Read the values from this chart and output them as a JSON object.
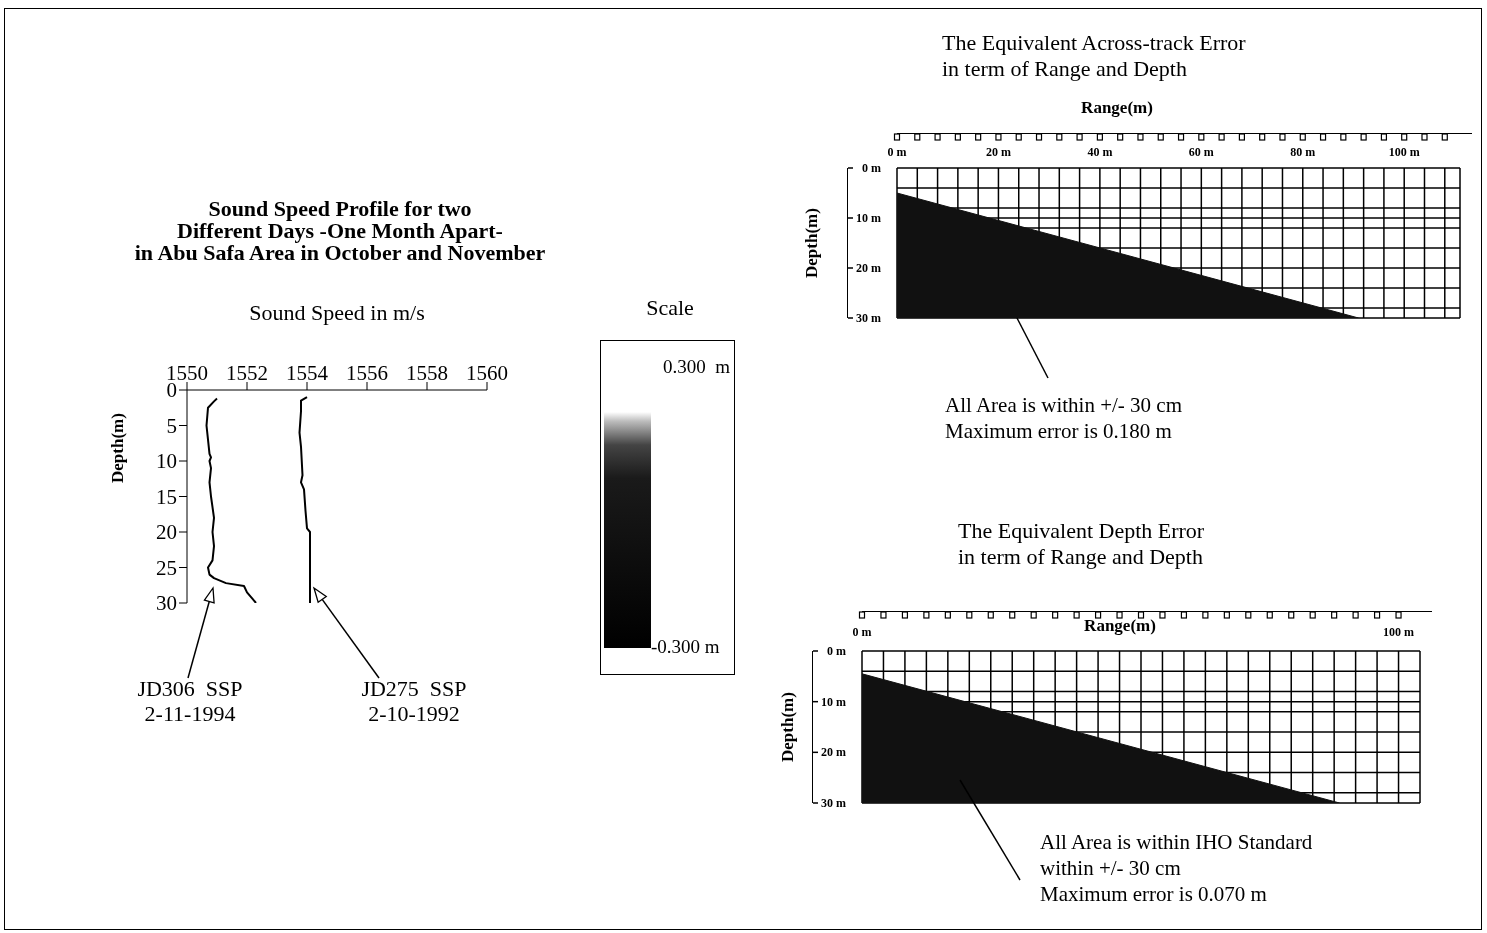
{
  "chart_data": [
    {
      "type": "line",
      "title": "Sound Speed Profile for two\nDifferent Days -One Month Apart-\nin Abu Safa Area in October and November",
      "xlabel": "Sound Speed in m/s",
      "ylabel": "Depth(m)",
      "xlim": [
        1550,
        1560
      ],
      "xticks": [
        1550,
        1552,
        1554,
        1556,
        1558,
        1560
      ],
      "ylim": [
        30,
        0
      ],
      "yticks": [
        0,
        5,
        10,
        15,
        20,
        25,
        30
      ],
      "series": [
        {
          "color": "#000000",
          "x": [
            1551.0,
            1550.9,
            1550.7,
            1550.65,
            1550.7,
            1550.75,
            1550.8,
            1550.75,
            1550.8,
            1550.75,
            1550.8,
            1550.85,
            1550.9,
            1550.85,
            1550.9,
            1550.85,
            1550.7,
            1550.75,
            1550.9,
            1551.3,
            1551.9,
            1552.0,
            1552.2,
            1552.3
          ],
          "values": [
            1.2,
            1.6,
            2.5,
            5,
            7,
            9,
            9.5,
            10,
            11,
            13,
            15,
            16.5,
            18,
            20,
            22,
            24,
            25,
            26,
            26.5,
            27.2,
            27.6,
            28.5,
            29.5,
            30
          ]
        },
        {
          "color": "#000000",
          "x": [
            1554.0,
            1553.8,
            1553.8,
            1553.75,
            1553.8,
            1553.85,
            1553.8,
            1553.9,
            1553.95,
            1554.0,
            1554.1,
            1554.1
          ],
          "values": [
            1.0,
            1.5,
            3,
            6,
            8,
            12,
            13,
            14,
            17,
            19.5,
            20,
            30
          ]
        }
      ],
      "annotations": [
        "JD306  SSP\n2-11-1994",
        "JD275  SSP\n2-10-1992"
      ]
    },
    {
      "type": "other",
      "title": "Scale",
      "annotations": [
        "0.300  m",
        "-0.300 m"
      ]
    },
    {
      "type": "area",
      "title": "The Equivalent Across-track Error\nin term of Range and Depth",
      "xlabel": "Range(m)",
      "ylabel": "Depth(m)",
      "x": [
        0,
        91
      ],
      "values": [
        5,
        30
      ],
      "color": "#111111",
      "grid": true,
      "xlim": [
        0,
        111
      ],
      "xticks": [
        {
          "value": 0,
          "label": "0 m"
        },
        {
          "value": 4,
          "label": null
        },
        {
          "value": 8,
          "label": null
        },
        {
          "value": 12,
          "label": null
        },
        {
          "value": 16,
          "label": null
        },
        {
          "value": 20,
          "label": "20 m"
        },
        {
          "value": 24,
          "label": null
        },
        {
          "value": 28,
          "label": null
        },
        {
          "value": 32,
          "label": null
        },
        {
          "value": 36,
          "label": null
        },
        {
          "value": 40,
          "label": "40 m"
        },
        {
          "value": 44,
          "label": null
        },
        {
          "value": 48,
          "label": null
        },
        {
          "value": 52,
          "label": null
        },
        {
          "value": 56,
          "label": null
        },
        {
          "value": 60,
          "label": "60 m"
        },
        {
          "value": 64,
          "label": null
        },
        {
          "value": 68,
          "label": null
        },
        {
          "value": 72,
          "label": null
        },
        {
          "value": 76,
          "label": null
        },
        {
          "value": 80,
          "label": "80 m"
        },
        {
          "value": 84,
          "label": null
        },
        {
          "value": 88,
          "label": null
        },
        {
          "value": 92,
          "label": null
        },
        {
          "value": 96,
          "label": null
        },
        {
          "value": 100,
          "label": "100 m"
        },
        {
          "value": 104,
          "label": null
        },
        {
          "value": 108,
          "label": null
        }
      ],
      "ylim": [
        30,
        0
      ],
      "yticks": [
        {
          "value": 0,
          "label": "0 m"
        },
        {
          "value": 4,
          "label": null
        },
        {
          "value": 8,
          "label": null
        },
        {
          "value": 10,
          "label": "10 m"
        },
        {
          "value": 12,
          "label": null
        },
        {
          "value": 16,
          "label": null
        },
        {
          "value": 20,
          "label": "20 m"
        },
        {
          "value": 24,
          "label": null
        },
        {
          "value": 28,
          "label": null
        },
        {
          "value": 30,
          "label": "30 m"
        }
      ],
      "annotations": [
        "All Area is within +/- 30 cm",
        "Maximum error is 0.180 m"
      ]
    },
    {
      "type": "area",
      "title": "The Equivalent Depth Error\nin term of Range and Depth",
      "xlabel": "Range(m)",
      "ylabel": "Depth(m)",
      "x": [
        0,
        89
      ],
      "values": [
        4.5,
        30
      ],
      "color": "#111111",
      "grid": true,
      "xlim": [
        0,
        104
      ],
      "xticks": [
        {
          "value": 0,
          "label": "0 m"
        },
        {
          "value": 4,
          "label": null
        },
        {
          "value": 8,
          "label": null
        },
        {
          "value": 12,
          "label": null
        },
        {
          "value": 16,
          "label": null
        },
        {
          "value": 20,
          "label": null
        },
        {
          "value": 24,
          "label": null
        },
        {
          "value": 28,
          "label": null
        },
        {
          "value": 32,
          "label": null
        },
        {
          "value": 36,
          "label": null
        },
        {
          "value": 40,
          "label": null
        },
        {
          "value": 44,
          "label": null
        },
        {
          "value": 48,
          "label": null
        },
        {
          "value": 52,
          "label": null
        },
        {
          "value": 56,
          "label": null
        },
        {
          "value": 60,
          "label": null
        },
        {
          "value": 64,
          "label": null
        },
        {
          "value": 68,
          "label": null
        },
        {
          "value": 72,
          "label": null
        },
        {
          "value": 76,
          "label": null
        },
        {
          "value": 80,
          "label": null
        },
        {
          "value": 84,
          "label": null
        },
        {
          "value": 88,
          "label": null
        },
        {
          "value": 92,
          "label": null
        },
        {
          "value": 96,
          "label": null
        },
        {
          "value": 100,
          "label": "100 m"
        }
      ],
      "ylim": [
        30,
        0
      ],
      "yticks": [
        {
          "value": 0,
          "label": "0 m"
        },
        {
          "value": 4,
          "label": null
        },
        {
          "value": 8,
          "label": null
        },
        {
          "value": 10,
          "label": "10 m"
        },
        {
          "value": 12,
          "label": null
        },
        {
          "value": 16,
          "label": null
        },
        {
          "value": 20,
          "label": "20 m"
        },
        {
          "value": 24,
          "label": null
        },
        {
          "value": 28,
          "label": null
        },
        {
          "value": 30,
          "label": "30 m"
        }
      ],
      "annotations": [
        "All Area is within IHO Standard",
        "within +/- 30 cm",
        "Maximum error is 0.070 m"
      ]
    }
  ]
}
